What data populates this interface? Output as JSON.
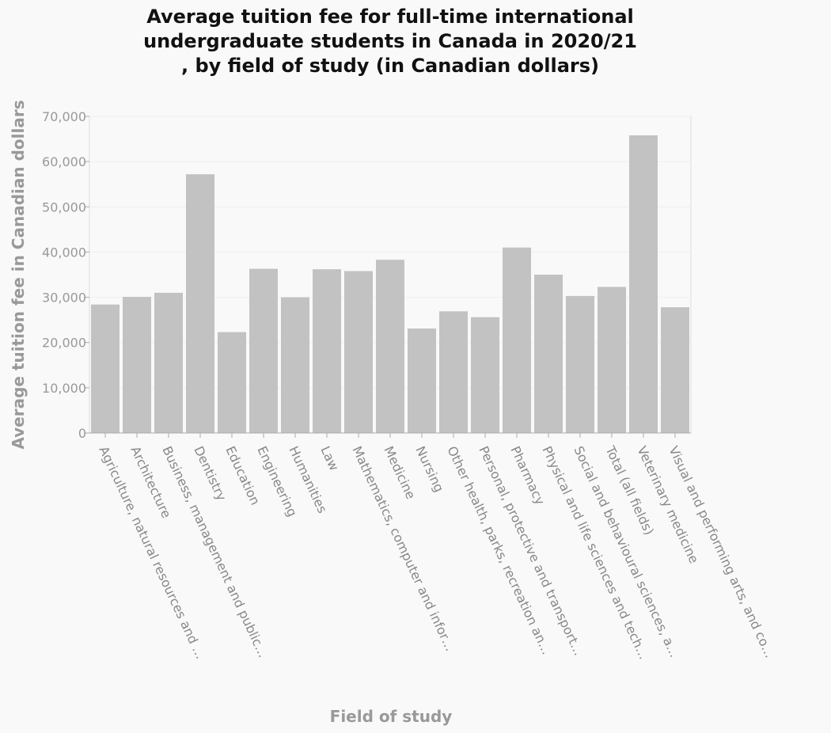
{
  "chart_data": {
    "type": "bar",
    "title_lines": [
      "Average tuition fee for full-time international",
      "undergraduate students in Canada in 2020/21",
      ", by field of study (in Canadian dollars)"
    ],
    "xlabel": "Field of study",
    "ylabel": "Average tuition fee in Canadian dollars",
    "ylim": [
      0,
      70000
    ],
    "yticks": [
      0,
      10000,
      20000,
      30000,
      40000,
      50000,
      60000,
      70000
    ],
    "ytick_labels": [
      "0",
      "10,000",
      "20,000",
      "30,000",
      "40,000",
      "50,000",
      "60,000",
      "70,000"
    ],
    "grid": true,
    "bar_color": "#c2c2c2",
    "categories": [
      "Agriculture, natural resources and …",
      "Architecture",
      "Business, management and public…",
      "Dentistry",
      "Education",
      "Engineering",
      "Humanities",
      "Law",
      "Mathematics, computer and infor…",
      "Medicine",
      "Nursing",
      "Other health, parks, recreation an…",
      "Personal, protective and transport…",
      "Pharmacy",
      "Physical and life sciences and tech…",
      "Social and behavioural sciences, a…",
      "Total (all fields)",
      "Veterinary medicine",
      "Visual and performing arts, and co…"
    ],
    "values": [
      28400,
      30100,
      31000,
      57200,
      22300,
      36300,
      30000,
      36200,
      35800,
      38300,
      23100,
      26900,
      25600,
      41000,
      35000,
      30300,
      32300,
      65800,
      27800
    ]
  }
}
